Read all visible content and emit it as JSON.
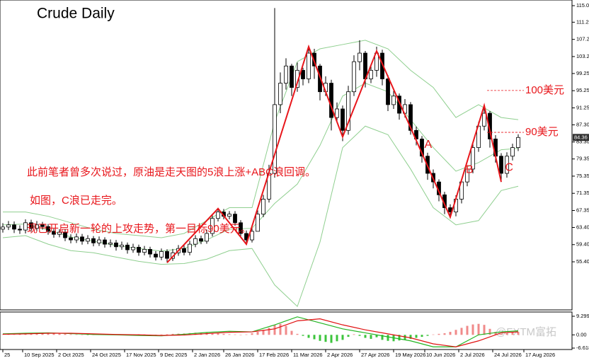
{
  "chart_data": [
    {
      "type": "candlestick",
      "title": "Crude  Daily",
      "open": [
        63,
        63.5,
        64,
        63,
        62.8,
        64.5,
        63.2,
        64,
        63.6,
        62.5,
        61.8,
        62.3,
        61,
        60.5,
        61.2,
        60.2,
        60.8,
        59.8,
        60.5,
        59.5,
        59.8,
        58.9,
        59.3,
        58.2,
        58.8,
        57.6,
        58.3,
        57.2,
        56.5,
        57.8,
        56.2,
        57.5,
        58.5,
        57.6,
        59.5,
        60.8,
        60.2,
        62,
        65.5,
        67,
        66,
        66.5,
        64.5,
        62,
        60.5,
        62.5,
        66.5,
        70,
        76,
        92,
        97,
        101,
        96,
        100,
        98,
        104,
        101,
        95,
        97,
        89,
        91,
        86,
        95,
        102,
        104,
        98,
        100,
        104,
        98,
        92,
        94,
        90,
        92,
        86,
        84,
        80,
        76,
        74,
        71,
        68,
        67,
        70,
        74,
        77,
        82,
        87,
        90,
        84,
        80,
        76,
        80,
        82
      ],
      "high": [
        64.4,
        64.9,
        64.8,
        63.9,
        65.3,
        65.2,
        64.9,
        64.7,
        64.2,
        63.1,
        63,
        62.9,
        61.8,
        62,
        61.9,
        61.6,
        61.4,
        61.3,
        61.1,
        60.6,
        60.5,
        60.1,
        59.9,
        59.6,
        59.4,
        59.1,
        58.9,
        57.9,
        58.5,
        58.3,
        58.4,
        59.3,
        59.2,
        60.3,
        61.6,
        61.5,
        62.9,
        66.3,
        67.8,
        67.7,
        67.2,
        67.2,
        65.1,
        62.7,
        63.2,
        67.4,
        71,
        78,
        114.5,
        99.5,
        102.8,
        101.5,
        101.8,
        100.6,
        105.8,
        105,
        101.5,
        98.6,
        97.8,
        92.5,
        91.8,
        96.4,
        103.5,
        107,
        104.5,
        101.4,
        105.5,
        104.8,
        98.9,
        95.2,
        94.6,
        93.3,
        92.6,
        86.9,
        84.7,
        80.8,
        76.9,
        74.6,
        71.7,
        68.8,
        70.9,
        74.8,
        77.9,
        83,
        88,
        91.6,
        90.5,
        84.9,
        80.7,
        80.9,
        82.9,
        85.1
      ],
      "low": [
        62.2,
        62.8,
        62.1,
        61.9,
        62,
        62.4,
        62.5,
        62.9,
        61.7,
        61,
        61.1,
        60.2,
        59.7,
        59.8,
        59.4,
        59.5,
        59,
        59.1,
        58.7,
        58.8,
        58,
        58.2,
        57.3,
        57.5,
        56.8,
        56.9,
        56.4,
        55.7,
        55.8,
        55.2,
        55.6,
        56.8,
        56.9,
        56.9,
        58.8,
        59.5,
        59.6,
        61.3,
        64.8,
        65.3,
        65.3,
        63.8,
        61.3,
        59.8,
        59.9,
        62.5,
        65.8,
        69.2,
        75,
        90,
        95.5,
        94,
        95,
        96.5,
        97,
        98,
        93,
        94,
        86,
        88,
        83.5,
        85,
        94,
        100,
        96,
        97,
        98.5,
        96.5,
        90.5,
        91,
        88.5,
        89,
        85,
        82.5,
        78.5,
        74.5,
        72.5,
        69.5,
        66.5,
        65.5,
        66,
        69,
        73,
        76,
        81,
        86,
        82,
        78.5,
        74,
        75,
        79,
        81.2
      ],
      "close": [
        63.5,
        64,
        63,
        62.8,
        64.5,
        63.2,
        64,
        63.6,
        62.5,
        61.8,
        62.3,
        61,
        60.5,
        61.2,
        60.2,
        60.8,
        59.8,
        60.5,
        59.5,
        59.8,
        58.9,
        59.3,
        58.2,
        58.8,
        57.6,
        58.3,
        57.2,
        56.5,
        57.8,
        56.2,
        57.5,
        58.5,
        57.6,
        59.5,
        60.8,
        60.2,
        62,
        65.5,
        67,
        66,
        66.5,
        64.5,
        62,
        60.5,
        62.5,
        66.5,
        70,
        76,
        92,
        97,
        101,
        96,
        100,
        98,
        104,
        101,
        95,
        97,
        89,
        91,
        86,
        95,
        102,
        104,
        98,
        100,
        104,
        98,
        92,
        94,
        90,
        92,
        86,
        84,
        80,
        76,
        74,
        71,
        68,
        67,
        70,
        74,
        77,
        82,
        87,
        90,
        84,
        80,
        76,
        80,
        82,
        84.36
      ],
      "band_x": [
        0,
        4,
        8,
        12,
        16,
        20,
        24,
        28,
        32,
        36,
        40,
        44,
        48,
        52,
        56,
        60,
        64,
        68,
        72,
        76,
        80,
        84,
        88,
        91
      ],
      "bands": [
        {
          "color": "#8fcf8f",
          "values": [
            67,
            67,
            66,
            64.5,
            63,
            62,
            61.5,
            61,
            62,
            65,
            68,
            68,
            88,
            102,
            105,
            106,
            107,
            105,
            100,
            96,
            89,
            92,
            89,
            88.5
          ]
        },
        {
          "color": "#8fcf8f",
          "values": [
            64,
            64.2,
            62.8,
            61.2,
            60.2,
            59.2,
            58.5,
            57.9,
            58.5,
            60.5,
            63,
            63.2,
            69,
            73.5,
            82.5,
            94,
            97,
            95,
            88.5,
            82,
            76.5,
            78.5,
            81.5,
            81.8
          ]
        },
        {
          "color": "#8fcf8f",
          "values": [
            61,
            61.5,
            59.5,
            58,
            57.5,
            56.5,
            55.5,
            54.8,
            55,
            56,
            58,
            58.5,
            50,
            45,
            60,
            82,
            87,
            85,
            77,
            68,
            64,
            65,
            72,
            73
          ]
        }
      ],
      "wave_color": "#e8161b",
      "wave_line": [
        [
          29,
          55.2
        ],
        [
          38,
          67.8
        ],
        [
          43,
          59.5
        ],
        [
          54,
          105.5
        ],
        [
          60,
          84.5
        ],
        [
          66,
          104.5
        ],
        [
          79,
          65.8
        ],
        [
          85,
          91.8
        ],
        [
          88,
          74
        ]
      ],
      "wave_labels": [
        {
          "text": "A",
          "x": 75.1,
          "y": 82.6
        },
        {
          "text": "B",
          "x": 82.4,
          "y": 76.8
        },
        {
          "text": "C",
          "x": 89.4,
          "y": 77.3
        }
      ],
      "levels": [
        {
          "text": "100美元",
          "y": 95.3
        },
        {
          "text": "90美元",
          "y": 85.55
        }
      ],
      "notes": [
        "此前笔者曾多次说过，原油是走天图的5浪上涨+ABC浪回调。",
        "如图，C浪已走完。",
        "现已开启新一轮的上攻走势，第一目标90美元。"
      ],
      "xlim": [
        -0.5,
        100.5
      ],
      "xticks": [
        {
          "value": 0,
          "label": "25"
        },
        {
          "value": 3.5,
          "label": "10 Sep 2025"
        },
        {
          "value": 9.5,
          "label": "2 Oct 2025"
        },
        {
          "value": 15.5,
          "label": "24 Oct 2025"
        },
        {
          "value": 21.5,
          "label": "17 Nov 2025"
        },
        {
          "value": 27.5,
          "label": "9 Dec 2025"
        },
        {
          "value": 33.5,
          "label": "2 Jan 2026"
        },
        {
          "value": 39,
          "label": "26 Jan 2026"
        },
        {
          "value": 45,
          "label": "17 Feb 2026"
        },
        {
          "value": 51,
          "label": "11 Mar 2026"
        },
        {
          "value": 57,
          "label": "2 Apr 2026"
        },
        {
          "value": 63,
          "label": "27 Apr 2026"
        },
        {
          "value": 69,
          "label": "19 May 2026"
        },
        {
          "value": 74.5,
          "label": "10 Jun 2026"
        },
        {
          "value": 80.5,
          "label": "2 Jul 2026"
        },
        {
          "value": 86.5,
          "label": "24 Jul 2026"
        },
        {
          "value": 92,
          "label": "17 Aug 2026"
        }
      ],
      "ylim": [
        44.2,
        116.37
      ],
      "yticks": [
        115.05,
        {
          "value": 111.2,
          "label": "111.20"
        },
        {
          "value": 107.2,
          "label": "107.20"
        },
        {
          "value": 103.2,
          "label": "103.20"
        },
        99.25,
        95.25,
        91.25,
        {
          "value": 87.3,
          "label": "87.30"
        },
        {
          "value": 83.3,
          "label": "83.30"
        },
        79.35,
        75.35,
        71.35,
        67.35,
        {
          "value": 63.4,
          "label": "63.40"
        },
        {
          "value": 59.4,
          "label": "59.40"
        },
        {
          "value": 55.4,
          "label": "55.40"
        }
      ],
      "watermark": "@FXTM富拓"
    },
    {
      "type": "macd",
      "histogram": [
        0.3,
        0.4,
        0.2,
        0.3,
        0.6,
        0.8,
        0.9,
        1.0,
        0.8,
        0.7,
        0.6,
        0.5,
        0.3,
        0.2,
        0.1,
        -0.1,
        0.1,
        0.2,
        0.1,
        0.2,
        0.3,
        0.2,
        0.1,
        0.2,
        0.3,
        0.2,
        0.1,
        -0.1,
        0.2,
        0.3,
        0.5,
        0.6,
        0.7,
        0.9,
        1.1,
        1.2,
        1.0,
        0.8,
        0.7,
        0.5,
        0.3,
        0.2,
        0.1,
        0.2,
        0.8,
        1.5,
        2.5,
        3.5,
        5,
        5.5,
        4.5,
        2,
        0.5,
        -0.5,
        -1.5,
        -2.2,
        -3,
        -3.5,
        -4,
        -3.2,
        -2.5,
        -1,
        0.3,
        -0.5,
        -1.5,
        -2,
        -1.2,
        -2.5,
        -3,
        -3.2,
        -2.8,
        -2.5,
        -2,
        -1.5,
        -1,
        -0.5,
        0.2,
        0.5,
        0.8,
        1.5,
        2.5,
        3.5,
        4.5,
        5.2,
        5.5,
        5,
        3,
        1.5,
        0.5,
        0.8,
        1.2,
        1.5
      ],
      "pos_color": "#f08a8a",
      "neg_color": "#3cc43c",
      "x": [
        0,
        4,
        8,
        12,
        16,
        20,
        24,
        28,
        32,
        36,
        40,
        44,
        48,
        52,
        56,
        60,
        64,
        68,
        72,
        76,
        80,
        84,
        88,
        91
      ],
      "lines": [
        {
          "color": "#22b522",
          "values": [
            0.5,
            0.8,
            1,
            0.6,
            0.2,
            0,
            -0.3,
            -0.5,
            0.3,
            1.2,
            1.8,
            1.5,
            5,
            9,
            6,
            3,
            1,
            -1,
            -3,
            -6,
            -6,
            0,
            1.5,
            2
          ]
        },
        {
          "color": "#e01010",
          "values": [
            0.3,
            0.5,
            0.8,
            0.8,
            0.5,
            0.2,
            0,
            -0.3,
            -0.1,
            0.6,
            1.3,
            1.5,
            3,
            7,
            8,
            5,
            2.5,
            0.5,
            -1.5,
            -4.5,
            -6,
            -3,
            1,
            1.5
          ]
        }
      ],
      "ylim": [
        -7.33,
        11.42
      ],
      "yticks": [
        9.2995,
        {
          "value": 0,
          "label": "0.00"
        },
        -6.6185
      ]
    }
  ]
}
